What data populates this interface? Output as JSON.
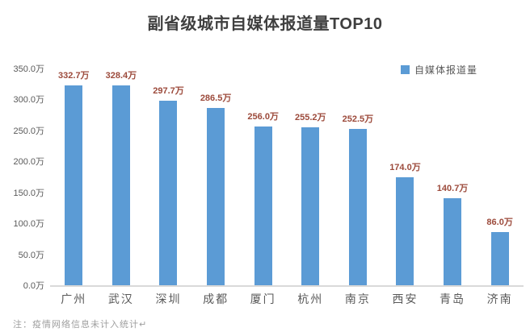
{
  "title": "副省级城市自媒体报道量TOP10",
  "legend": {
    "label": "自媒体报道量"
  },
  "footnote": "注：疫情网络信息未计入统计↵",
  "colors": {
    "bar": "#5B9BD5",
    "value_label": "#9C4A3B",
    "axis_text": "#595959",
    "title_text": "#3F3F3F",
    "baseline": "#D9D9D9",
    "footnote_text": "#9E9E9E"
  },
  "chart_data": {
    "type": "bar",
    "title": "副省级城市自媒体报道量TOP10",
    "categories": [
      "广州",
      "武汉",
      "深圳",
      "成都",
      "厦门",
      "杭州",
      "南京",
      "西安",
      "青岛",
      "济南"
    ],
    "values": [
      332.7,
      328.4,
      297.7,
      286.5,
      256.0,
      255.2,
      252.5,
      174.0,
      140.7,
      86.0
    ],
    "value_labels": [
      "332.7万",
      "328.4万",
      "297.7万",
      "286.5万",
      "256.0万",
      "255.2万",
      "252.5万",
      "174.0万",
      "140.7万",
      "86.0万"
    ],
    "unit": "万",
    "xlabel": "",
    "ylabel": "",
    "ylim": [
      0,
      350
    ],
    "ytick_labels": [
      "0.0万",
      "50.0万",
      "100.0万",
      "150.0万",
      "200.0万",
      "250.0万",
      "300.0万",
      "350.0万"
    ],
    "legend_entries": [
      "自媒体报道量"
    ],
    "legend_position": "top-right",
    "grid": false
  }
}
